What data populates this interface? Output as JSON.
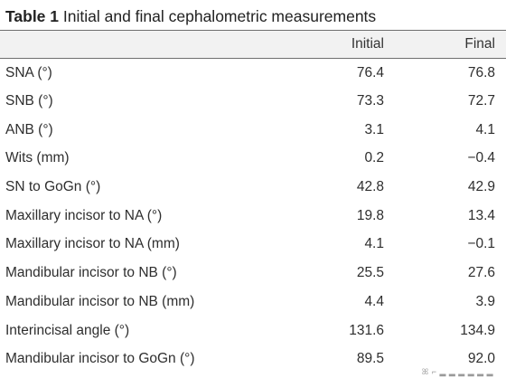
{
  "caption": {
    "label": "Table 1",
    "text": "Initial and final cephalometric measurements"
  },
  "table": {
    "columns": [
      "",
      "Initial",
      "Final"
    ],
    "rows": [
      {
        "measure": "SNA (°)",
        "initial": "76.4",
        "final": "76.8"
      },
      {
        "measure": "SNB (°)",
        "initial": "73.3",
        "final": "72.7"
      },
      {
        "measure": "ANB (°)",
        "initial": "3.1",
        "final": "4.1"
      },
      {
        "measure": "Wits (mm)",
        "initial": "0.2",
        "final": "−0.4"
      },
      {
        "measure": "SN to GoGn (°)",
        "initial": "42.8",
        "final": "42.9"
      },
      {
        "measure": "Maxillary incisor to NA (°)",
        "initial": "19.8",
        "final": "13.4"
      },
      {
        "measure": "Maxillary incisor to NA (mm)",
        "initial": "4.1",
        "final": "−0.1"
      },
      {
        "measure": "Mandibular incisor to NB (°)",
        "initial": "25.5",
        "final": "27.6"
      },
      {
        "measure": "Mandibular incisor to NB (mm)",
        "initial": "4.4",
        "final": "3.9"
      },
      {
        "measure": "Interincisal angle (°)",
        "initial": "131.6",
        "final": "134.9"
      },
      {
        "measure": "Mandibular incisor to GoGn (°)",
        "initial": "89.5",
        "final": "92.0"
      }
    ]
  },
  "watermark": {
    "text": "ꕤ ⌐ ▂ ▂ ▂ ▂ ▂ ▂"
  }
}
